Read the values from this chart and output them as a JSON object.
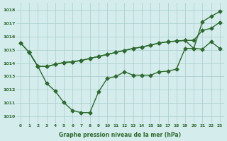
{
  "line1_x": [
    0,
    1,
    2,
    3,
    4,
    5,
    6,
    7,
    8,
    9,
    10,
    11,
    12,
    13,
    14,
    15,
    16,
    17,
    18,
    19,
    20,
    21,
    22,
    23
  ],
  "line1_y": [
    1015.5,
    1014.8,
    1013.75,
    1013.75,
    1013.9,
    1014.05,
    1014.1,
    1014.2,
    1014.35,
    1014.5,
    1014.65,
    1014.8,
    1014.95,
    1015.1,
    1015.2,
    1015.35,
    1015.5,
    1015.6,
    1015.65,
    1015.7,
    1015.7,
    1016.45,
    1016.6,
    1017.05
  ],
  "line2_x": [
    1,
    2,
    3,
    4,
    5,
    6,
    7,
    8,
    9,
    10,
    11,
    12,
    13,
    14,
    15,
    16,
    17,
    18,
    19,
    20,
    21,
    22,
    23
  ],
  "line2_y": [
    1014.8,
    1013.75,
    1013.75,
    1013.9,
    1014.05,
    1014.1,
    1014.2,
    1014.35,
    1014.5,
    1014.65,
    1014.8,
    1014.95,
    1015.1,
    1015.2,
    1015.35,
    1015.5,
    1015.6,
    1015.65,
    1015.7,
    1015.1,
    1015.05,
    1015.6,
    1015.1
  ],
  "line3_x": [
    0,
    1,
    2,
    3,
    4,
    5,
    6,
    7,
    8,
    9,
    10,
    11,
    12,
    13,
    14,
    15,
    16,
    17,
    18,
    19,
    20,
    21,
    22,
    23
  ],
  "line3_y": [
    1015.5,
    1014.8,
    1013.75,
    1012.5,
    1011.9,
    1011.05,
    1010.45,
    1010.3,
    1010.3,
    1011.85,
    1012.85,
    1013.0,
    1013.35,
    1013.1,
    1013.1,
    1013.1,
    1013.35,
    1013.4,
    1013.55,
    1015.1,
    1015.1,
    1017.1,
    1017.5,
    1017.85
  ],
  "line_color": "#2d6a2d",
  "marker": "D",
  "markersize": 2.5,
  "linewidth": 1.0,
  "xlabel": "Graphe pression niveau de la mer (hPa)",
  "ylim": [
    1009.5,
    1018.5
  ],
  "xlim": [
    -0.5,
    23.5
  ],
  "yticks": [
    1010,
    1011,
    1012,
    1013,
    1014,
    1015,
    1016,
    1017,
    1018
  ],
  "xticks": [
    0,
    1,
    2,
    3,
    4,
    5,
    6,
    7,
    8,
    9,
    10,
    11,
    12,
    13,
    14,
    15,
    16,
    17,
    18,
    19,
    20,
    21,
    22,
    23
  ],
  "bg_color": "#d4ecec",
  "grid_color": "#a8cccc"
}
